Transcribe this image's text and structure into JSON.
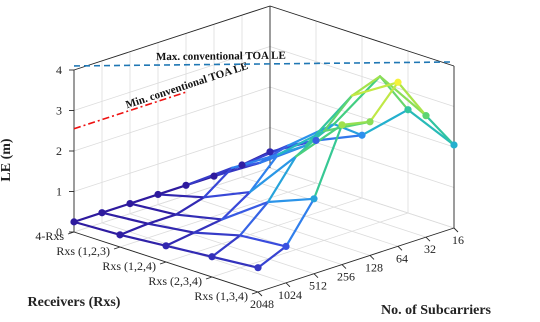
{
  "chart_data": {
    "type": "surface-mesh-3d",
    "zlabel": "LE (m)",
    "receivers_label": "Receivers (Rxs)",
    "subcarriers_label": "No. of Subcarriers",
    "zlim": [
      0,
      4
    ],
    "z_ticks": [
      "0",
      "1",
      "2",
      "3",
      "4"
    ],
    "grid": true,
    "receivers": [
      "4-Rxs",
      "Rxs (1,2,3)",
      "Rxs (1,2,4)",
      "Rxs (2,3,4)",
      "Rxs (1,3,4)"
    ],
    "subcarriers": [
      "2048",
      "1024",
      "512",
      "256",
      "128",
      "64",
      "32",
      "16"
    ],
    "le": [
      [
        0.25,
        0.25,
        0.25,
        0.25,
        0.25,
        0.25,
        0.3,
        0.4
      ],
      [
        0.3,
        0.35,
        0.35,
        0.55,
        1.05,
        0.95,
        1.15,
        1.05
      ],
      [
        0.4,
        0.5,
        0.6,
        1.05,
        1.75,
        1.75,
        2.05,
        1.55
      ],
      [
        0.5,
        0.8,
        1.4,
        2.3,
        2.7,
        3.35,
        3.6,
        2.55
      ],
      [
        0.6,
        0.9,
        1.85,
        3.45,
        3.3,
        4.05,
        3.0,
        2.05
      ]
    ],
    "reference_lines": [
      {
        "label": "Max. conventional TOA LE",
        "value": 4.1,
        "color": "#1f77b4",
        "style": "dashed"
      },
      {
        "label": "Min. conventional TOA LE",
        "value": 2.55,
        "color": "#ee1111",
        "style": "dashdot"
      }
    ],
    "colormap": [
      "#2e1a9e",
      "#3a4ee0",
      "#2d8df0",
      "#22b6c8",
      "#3ccd86",
      "#9be14e",
      "#f5f23a"
    ]
  }
}
